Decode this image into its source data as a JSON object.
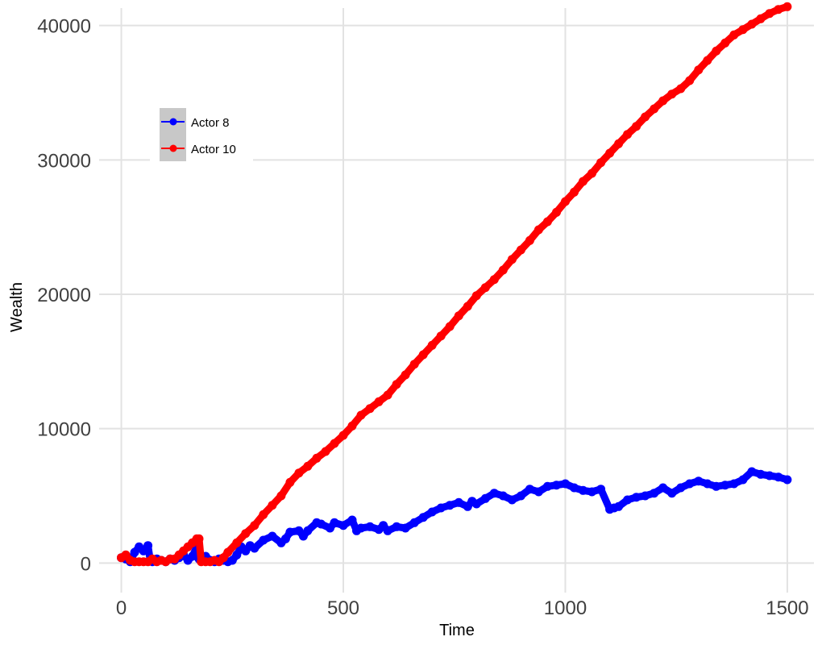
{
  "chart_data": {
    "type": "line",
    "title": "",
    "xlabel": "Time",
    "ylabel": "Wealth",
    "xlim": [
      -50,
      1560
    ],
    "ylim": [
      -2200,
      41300
    ],
    "x_ticks": [
      0,
      500,
      1000,
      1500
    ],
    "x_tick_labels": [
      "0",
      "500",
      "1000",
      "1500"
    ],
    "y_ticks": [
      0,
      10000,
      20000,
      30000,
      40000
    ],
    "y_tick_labels": [
      "0",
      "10000",
      "20000",
      "30000",
      "40000"
    ],
    "grid": true,
    "legend_position": "top-left",
    "series": [
      {
        "name": "Actor 8",
        "color": "#0000ff",
        "x": [
          0,
          10,
          20,
          30,
          40,
          50,
          60,
          65,
          70,
          80,
          90,
          100,
          110,
          120,
          130,
          140,
          150,
          160,
          170,
          175,
          180,
          190,
          200,
          210,
          220,
          230,
          240,
          250,
          260,
          270,
          280,
          290,
          300,
          320,
          340,
          360,
          370,
          380,
          400,
          410,
          420,
          440,
          450,
          470,
          480,
          500,
          520,
          530,
          540,
          560,
          580,
          590,
          600,
          620,
          640,
          660,
          680,
          700,
          720,
          740,
          760,
          780,
          790,
          800,
          820,
          840,
          860,
          880,
          900,
          920,
          940,
          960,
          980,
          1000,
          1020,
          1040,
          1060,
          1080,
          1100,
          1110,
          1120,
          1140,
          1160,
          1180,
          1200,
          1220,
          1240,
          1260,
          1280,
          1300,
          1320,
          1340,
          1360,
          1380,
          1400,
          1420,
          1440,
          1460,
          1480,
          1500
        ],
        "y": [
          400,
          300,
          100,
          800,
          1200,
          900,
          1300,
          200,
          100,
          300,
          200,
          100,
          300,
          200,
          400,
          600,
          200,
          500,
          1200,
          300,
          200,
          500,
          200,
          100,
          300,
          200,
          100,
          200,
          600,
          1200,
          900,
          1300,
          1100,
          1700,
          2000,
          1500,
          1800,
          2300,
          2400,
          2000,
          2400,
          3000,
          2900,
          2600,
          3000,
          2800,
          3200,
          2400,
          2600,
          2700,
          2500,
          2800,
          2400,
          2700,
          2600,
          3000,
          3400,
          3800,
          4100,
          4300,
          4500,
          4200,
          4600,
          4400,
          4800,
          5200,
          5000,
          4700,
          5000,
          5500,
          5300,
          5700,
          5800,
          5900,
          5600,
          5400,
          5300,
          5500,
          4000,
          4100,
          4200,
          4700,
          4900,
          5000,
          5200,
          5600,
          5200,
          5600,
          5900,
          6100,
          5900,
          5700,
          5800,
          5900,
          6200,
          6800,
          6600,
          6500,
          6400,
          6200
        ]
      },
      {
        "name": "Actor 10",
        "color": "#ff0000",
        "x": [
          0,
          10,
          20,
          30,
          40,
          50,
          60,
          70,
          80,
          90,
          100,
          110,
          120,
          130,
          140,
          150,
          160,
          170,
          175,
          180,
          190,
          200,
          210,
          220,
          230,
          240,
          260,
          280,
          300,
          320,
          340,
          360,
          380,
          400,
          420,
          440,
          460,
          480,
          500,
          520,
          540,
          560,
          580,
          600,
          620,
          640,
          660,
          680,
          700,
          720,
          740,
          760,
          780,
          800,
          820,
          840,
          860,
          880,
          900,
          920,
          940,
          960,
          980,
          1000,
          1020,
          1040,
          1060,
          1080,
          1100,
          1120,
          1140,
          1160,
          1180,
          1200,
          1220,
          1240,
          1260,
          1280,
          1300,
          1320,
          1340,
          1360,
          1380,
          1400,
          1420,
          1440,
          1460,
          1480,
          1500
        ],
        "y": [
          400,
          600,
          200,
          100,
          100,
          100,
          100,
          300,
          100,
          200,
          100,
          300,
          300,
          600,
          900,
          1200,
          1500,
          1800,
          1800,
          100,
          100,
          100,
          200,
          100,
          400,
          800,
          1500,
          2200,
          2800,
          3600,
          4300,
          5000,
          6000,
          6700,
          7200,
          7800,
          8300,
          8900,
          9500,
          10200,
          11000,
          11500,
          12000,
          12500,
          13300,
          14000,
          14800,
          15500,
          16200,
          16900,
          17600,
          18400,
          19100,
          19900,
          20500,
          21100,
          21800,
          22600,
          23300,
          24000,
          24800,
          25400,
          26100,
          26900,
          27600,
          28400,
          29000,
          29800,
          30500,
          31200,
          31900,
          32500,
          33200,
          33800,
          34400,
          34900,
          35300,
          35900,
          36700,
          37400,
          38100,
          38700,
          39300,
          39700,
          40100,
          40500,
          40900,
          41200,
          41400
        ]
      }
    ]
  }
}
